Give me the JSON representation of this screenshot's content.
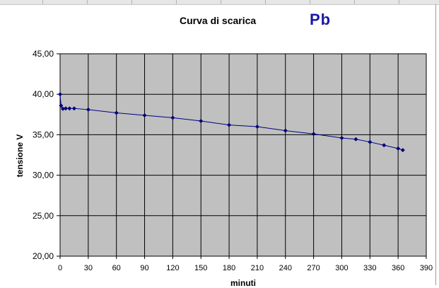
{
  "chart_data": {
    "type": "line",
    "title": "Curva di scarica",
    "subtitle": "Pb",
    "xlabel": "minuti",
    "ylabel": "tensione V",
    "xlim": [
      0,
      390
    ],
    "ylim": [
      20,
      45
    ],
    "xticks": [
      0,
      30,
      60,
      90,
      120,
      150,
      180,
      210,
      240,
      270,
      300,
      330,
      360,
      390
    ],
    "yticks": [
      "20,00",
      "25,00",
      "30,00",
      "35,00",
      "40,00",
      "45,00"
    ],
    "yticks_values": [
      20,
      25,
      30,
      35,
      40,
      45
    ],
    "grid": true,
    "colors": {
      "plot_background": "#c0c0c0",
      "series": "#000080",
      "gridlines": "#000000",
      "subtitle": "#1a1aa6"
    },
    "series": [
      {
        "x": [
          0,
          1,
          3,
          6,
          10,
          15,
          30,
          60,
          90,
          120,
          150,
          180,
          210,
          240,
          270,
          300,
          315,
          330,
          345,
          360,
          365
        ],
        "y": [
          40.0,
          38.6,
          38.2,
          38.25,
          38.25,
          38.25,
          38.1,
          37.7,
          37.4,
          37.1,
          36.7,
          36.2,
          36.0,
          35.5,
          35.1,
          34.6,
          34.45,
          34.1,
          33.7,
          33.3,
          33.1
        ]
      }
    ]
  }
}
